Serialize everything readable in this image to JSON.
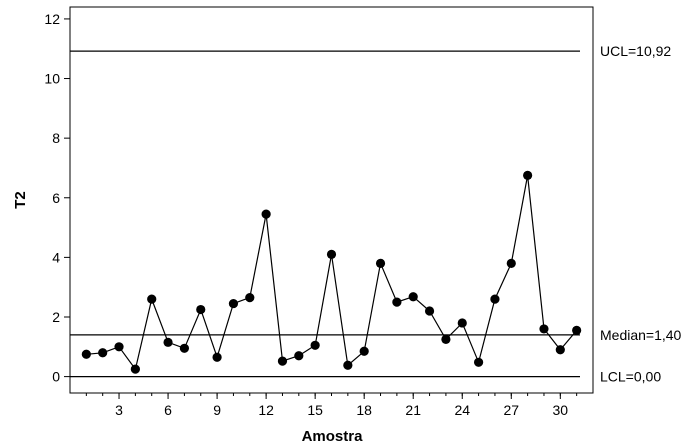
{
  "chart_data": {
    "type": "line",
    "title": "",
    "xlabel": "Amostra",
    "ylabel": "T2",
    "xlim": [
      0,
      32
    ],
    "ylim": [
      -0.55,
      12.4
    ],
    "x_ticks": [
      3,
      6,
      9,
      12,
      15,
      18,
      21,
      24,
      27,
      30
    ],
    "y_ticks": [
      0,
      2,
      4,
      6,
      8,
      10,
      12
    ],
    "grid": false,
    "legend": "none",
    "series": [
      {
        "x": [
          1,
          2,
          3,
          4,
          5,
          6,
          7,
          8,
          9,
          10,
          11,
          12,
          13,
          14,
          15,
          16,
          17,
          18,
          19,
          20,
          21,
          22,
          23,
          24,
          25,
          26,
          27,
          28,
          29,
          30,
          31
        ],
        "values": [
          0.75,
          0.8,
          1.0,
          0.25,
          2.6,
          1.15,
          0.95,
          2.25,
          0.65,
          2.45,
          2.65,
          5.45,
          0.52,
          0.7,
          1.05,
          4.1,
          0.38,
          0.85,
          3.8,
          2.5,
          2.68,
          2.2,
          1.25,
          1.8,
          0.48,
          2.6,
          3.8,
          6.75,
          1.6,
          0.9,
          1.55
        ]
      }
    ],
    "reference_lines": [
      {
        "label": "UCL=10,92",
        "value": 10.92
      },
      {
        "label": "Median=1,40",
        "value": 1.4
      },
      {
        "label": "LCL=0,00",
        "value": 0.0
      }
    ],
    "colors": {
      "line": "#000000",
      "marker": "#000000"
    }
  }
}
